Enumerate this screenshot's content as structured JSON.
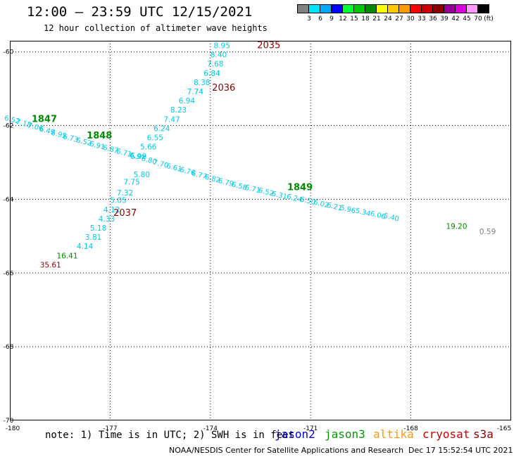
{
  "header": {
    "title": "12:00 – 23:59 UTC 12/15/2021",
    "subtitle": "12 hour collection of altimeter wave heights"
  },
  "colorbar": {
    "unit": "(ft)",
    "ticks": [
      "3",
      "6",
      "9",
      "12",
      "15",
      "18",
      "21",
      "24",
      "27",
      "30",
      "33",
      "36",
      "39",
      "42",
      "45",
      "70"
    ],
    "colors": [
      "#808080",
      "#00e5ff",
      "#00a8ff",
      "#0000ff",
      "#00ff33",
      "#00c800",
      "#008c00",
      "#ffff00",
      "#ffc800",
      "#ff9900",
      "#ff0000",
      "#cc0000",
      "#8c0000",
      "#990099",
      "#dd00dd",
      "#ff99ff",
      "#000000"
    ]
  },
  "map": {
    "lon_range": [
      -180,
      -165
    ],
    "lat_range": [
      -70,
      -59.7
    ],
    "x_tick_labels": [
      "-180",
      "-177",
      "-174",
      "-171",
      "-168",
      "-165"
    ],
    "y_tick_labels": [
      "-60",
      "-62",
      "-64",
      "-66",
      "-68",
      "-70"
    ],
    "time_labels": [
      {
        "text": "2035",
        "lon": -172.6,
        "lat": -59.9,
        "color": "#8c0000"
      },
      {
        "text": "2036",
        "lon": -173.95,
        "lat": -61.05,
        "color": "#8c0000"
      },
      {
        "text": "2037",
        "lon": -176.9,
        "lat": -64.45,
        "color": "#8c0000"
      },
      {
        "text": "1847",
        "lon": -179.35,
        "lat": -61.9,
        "color": "#008c00"
      },
      {
        "text": "1848",
        "lon": -177.7,
        "lat": -62.35,
        "color": "#008c00"
      },
      {
        "text": "1849",
        "lon": -171.7,
        "lat": -63.75,
        "color": "#008c00"
      }
    ],
    "cryosat_track": [
      {
        "v": "8.95",
        "lon": -173.9,
        "lat": -59.9
      },
      {
        "v": "8.40",
        "lon": -174.0,
        "lat": -60.15
      },
      {
        "v": "7.68",
        "lon": -174.1,
        "lat": -60.4
      },
      {
        "v": "6.84",
        "lon": -174.2,
        "lat": -60.65
      },
      {
        "v": "8.38",
        "lon": -174.5,
        "lat": -60.9
      },
      {
        "v": "7.74",
        "lon": -174.7,
        "lat": -61.15
      },
      {
        "v": "6.94",
        "lon": -174.95,
        "lat": -61.4
      },
      {
        "v": "8.23",
        "lon": -175.2,
        "lat": -61.65
      },
      {
        "v": "7.47",
        "lon": -175.4,
        "lat": -61.9
      },
      {
        "v": "6.24",
        "lon": -175.7,
        "lat": -62.15
      },
      {
        "v": "6.55",
        "lon": -175.9,
        "lat": -62.4
      },
      {
        "v": "5.66",
        "lon": -176.1,
        "lat": -62.65
      },
      {
        "v": "6.99",
        "lon": -176.4,
        "lat": -62.9
      },
      {
        "v": "5.80",
        "lon": -176.3,
        "lat": -63.4
      },
      {
        "v": "7.75",
        "lon": -176.6,
        "lat": -63.6
      },
      {
        "v": "7.32",
        "lon": -176.8,
        "lat": -63.9
      },
      {
        "v": "5.05",
        "lon": -177.0,
        "lat": -64.1
      },
      {
        "v": "4.12",
        "lon": -177.2,
        "lat": -64.35
      },
      {
        "v": "4.33",
        "lon": -177.35,
        "lat": -64.6
      },
      {
        "v": "5.18",
        "lon": -177.6,
        "lat": -64.85
      },
      {
        "v": "3.81",
        "lon": -177.75,
        "lat": -65.1
      },
      {
        "v": "4.14",
        "lon": -178.0,
        "lat": -65.35
      },
      {
        "v": "16.41",
        "lon": -178.6,
        "lat": -65.6
      },
      {
        "v": "35.61",
        "lon": -179.1,
        "lat": -65.85
      }
    ],
    "isolated_values": [
      {
        "v": "19.20",
        "lon": -166.95,
        "lat": -64.8,
        "color": "#008c00"
      },
      {
        "v": "0.59",
        "lon": -165.95,
        "lat": -64.95,
        "color": "#808080"
      }
    ],
    "jason3_track_note": "dense overlapping labels along the second pass",
    "jason3_track": [
      {
        "v": "6.52",
        "lon": -179.95,
        "lat": -61.9
      },
      {
        "v": "7.18",
        "lon": -179.6,
        "lat": -62.0
      },
      {
        "v": "7.06",
        "lon": -179.25,
        "lat": -62.1
      },
      {
        "v": "6.49",
        "lon": -178.9,
        "lat": -62.2
      },
      {
        "v": "6.95",
        "lon": -178.55,
        "lat": -62.3
      },
      {
        "v": "6.73",
        "lon": -178.2,
        "lat": -62.4
      },
      {
        "v": "6.52",
        "lon": -177.8,
        "lat": -62.5
      },
      {
        "v": "6.91",
        "lon": -177.4,
        "lat": -62.6
      },
      {
        "v": "6.87",
        "lon": -177.0,
        "lat": -62.7
      },
      {
        "v": "6.71",
        "lon": -176.6,
        "lat": -62.8
      },
      {
        "v": "6.97",
        "lon": -176.2,
        "lat": -62.9
      },
      {
        "v": "6.80",
        "lon": -175.85,
        "lat": -63.0
      },
      {
        "v": "7.70",
        "lon": -175.5,
        "lat": -63.1
      },
      {
        "v": "6.61",
        "lon": -175.1,
        "lat": -63.2
      },
      {
        "v": "6.76",
        "lon": -174.7,
        "lat": -63.3
      },
      {
        "v": "6.77",
        "lon": -174.35,
        "lat": -63.4
      },
      {
        "v": "6.82",
        "lon": -173.95,
        "lat": -63.5
      },
      {
        "v": "6.79",
        "lon": -173.55,
        "lat": -63.6
      },
      {
        "v": "6.58",
        "lon": -173.15,
        "lat": -63.7
      },
      {
        "v": "6.71",
        "lon": -172.75,
        "lat": -63.78
      },
      {
        "v": "6.52",
        "lon": -172.35,
        "lat": -63.86
      },
      {
        "v": "6.31",
        "lon": -171.95,
        "lat": -63.95
      },
      {
        "v": "6.24",
        "lon": -171.5,
        "lat": -64.03
      },
      {
        "v": "6.50",
        "lon": -171.1,
        "lat": -64.1
      },
      {
        "v": "6.02",
        "lon": -170.7,
        "lat": -64.18
      },
      {
        "v": "6.21",
        "lon": -170.3,
        "lat": -64.26
      },
      {
        "v": "5.96",
        "lon": -169.9,
        "lat": -64.33
      },
      {
        "v": "5.34",
        "lon": -169.45,
        "lat": -64.41
      },
      {
        "v": "6.06",
        "lon": -169.0,
        "lat": -64.49
      },
      {
        "v": "5.40",
        "lon": -168.6,
        "lat": -64.55
      }
    ]
  },
  "footer": {
    "note": "note: 1) Time is in UTC; 2) SWH is in feet",
    "satellites": [
      {
        "name": "jason2",
        "color": "#0000dd"
      },
      {
        "name": "jason3",
        "color": "#009900"
      },
      {
        "name": "altika",
        "color": "#ff9900"
      },
      {
        "name": "cryosat",
        "color": "#cc0000"
      },
      {
        "name": "s3a",
        "color": "#8c0000"
      }
    ],
    "credit": "NOAA/NESDIS Center for Satellite Applications and Research",
    "timestamp": "Dec 17 15:52:54 UTC 2021"
  }
}
